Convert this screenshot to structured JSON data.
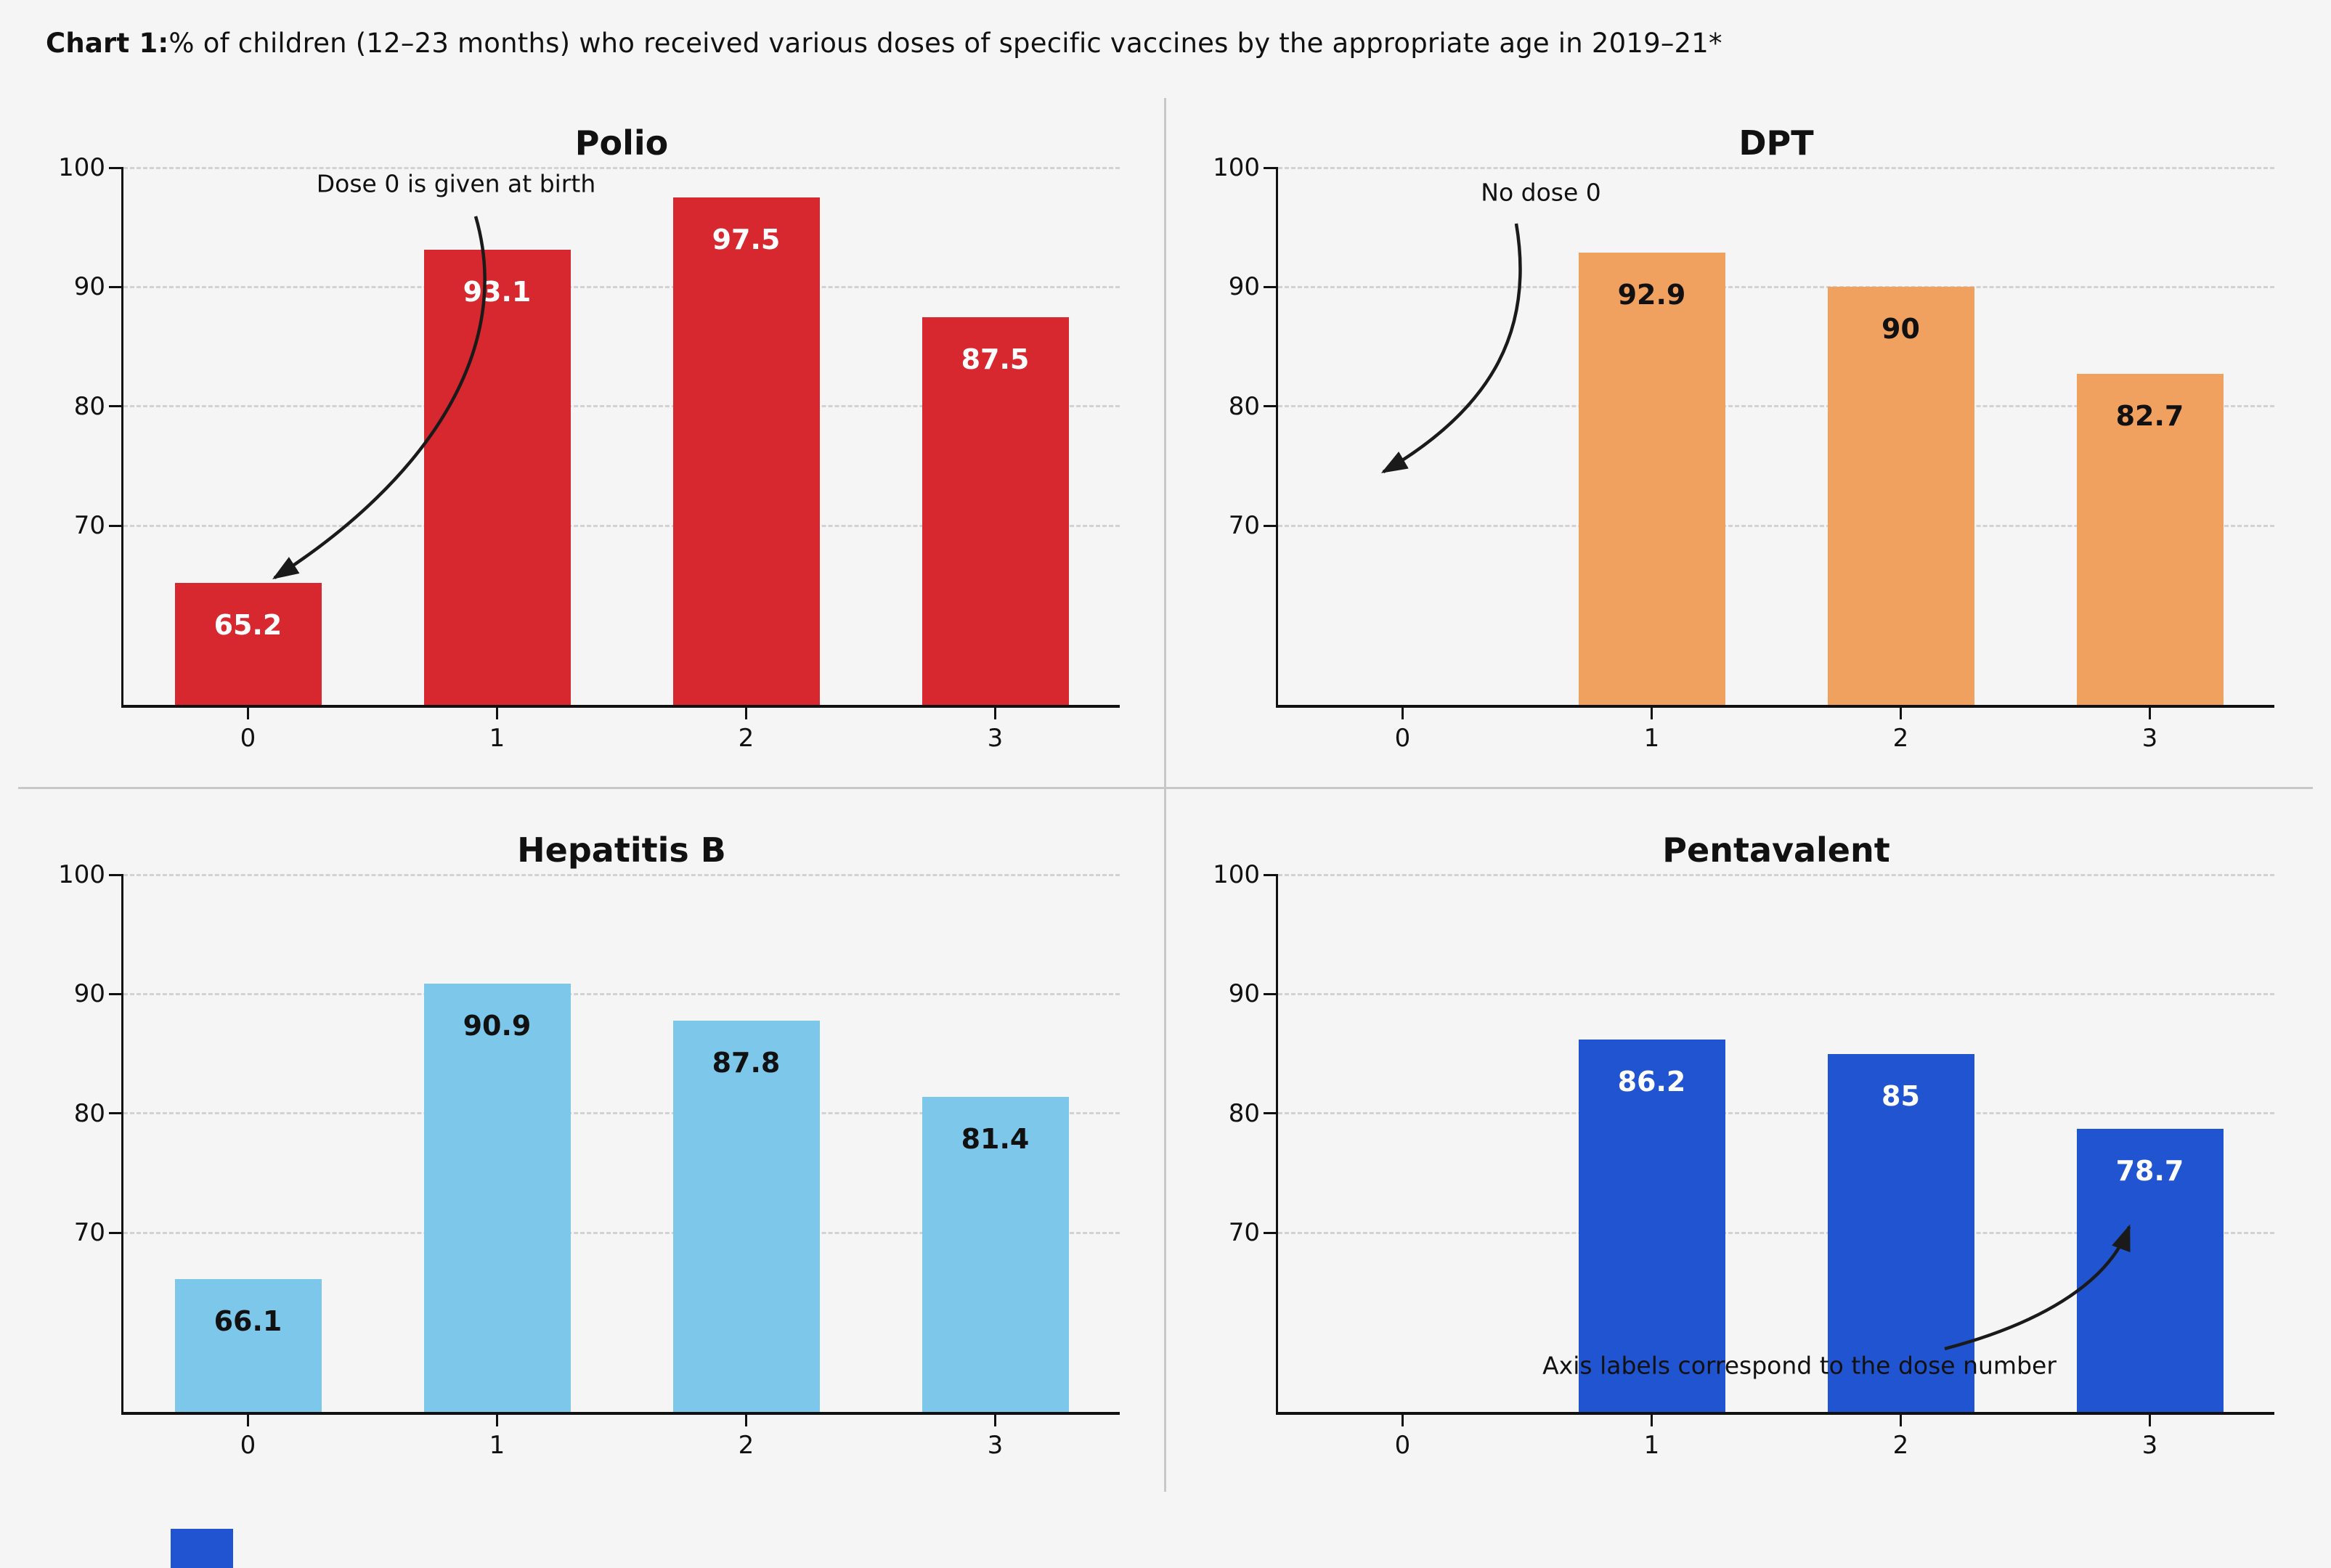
{
  "page": {
    "background": "#f5f5f6"
  },
  "title": {
    "prefix": "Chart 1:",
    "rest": "% of children (12–23 months) who received various doses of specific vaccines by the appropriate age in 2019–21*"
  },
  "colors": {
    "polio_red": "#d7282f",
    "dpt_orange": "#f0a15f",
    "hepb_skyblue": "#7cc7ea",
    "penta_royalblue": "#2154d0",
    "grid": "#d2d2d2",
    "axis": "#111111",
    "divider": "#c8c8c8"
  },
  "chart_data": [
    {
      "id": "polio",
      "type": "bar",
      "title": "Polio",
      "categories": [
        "0",
        "1",
        "2",
        "3"
      ],
      "values": [
        65.2,
        93.1,
        97.5,
        87.5
      ],
      "value_labels": [
        "65.2",
        "93.1",
        "97.5",
        "87.5"
      ],
      "bar_color": "#d7282f",
      "value_label_color": "#ffffff",
      "xlabel": "",
      "ylabel": "",
      "ylim": [
        55,
        100
      ],
      "yticks": [
        70,
        80,
        90,
        100
      ],
      "grid": "dashed-horizontal",
      "annotation": {
        "text": "Dose 0 is given at birth"
      }
    },
    {
      "id": "dpt",
      "type": "bar",
      "title": "DPT",
      "categories": [
        "0",
        "1",
        "2",
        "3"
      ],
      "values": [
        null,
        92.9,
        90,
        82.7
      ],
      "value_labels": [
        null,
        "92.9",
        "90",
        "82.7"
      ],
      "bar_color": "#f0a15f",
      "value_label_color": "#111111",
      "xlabel": "",
      "ylabel": "",
      "ylim": [
        55,
        100
      ],
      "yticks": [
        70,
        80,
        90,
        100
      ],
      "grid": "dashed-horizontal",
      "annotation": {
        "text": "No dose 0"
      }
    },
    {
      "id": "hepatitis-b",
      "type": "bar",
      "title": "Hepatitis B",
      "categories": [
        "0",
        "1",
        "2",
        "3"
      ],
      "values": [
        66.1,
        90.9,
        87.8,
        81.4
      ],
      "value_labels": [
        "66.1",
        "90.9",
        "87.8",
        "81.4"
      ],
      "bar_color": "#7cc7ea",
      "value_label_color": "#111111",
      "xlabel": "",
      "ylabel": "",
      "ylim": [
        55,
        100
      ],
      "yticks": [
        70,
        80,
        90,
        100
      ],
      "grid": "dashed-horizontal",
      "annotation": null
    },
    {
      "id": "pentavalent",
      "type": "bar",
      "title": "Pentavalent",
      "categories": [
        "0",
        "1",
        "2",
        "3"
      ],
      "values": [
        null,
        86.2,
        85,
        78.7
      ],
      "value_labels": [
        null,
        "86.2",
        "85",
        "78.7"
      ],
      "bar_color": "#2154d0",
      "value_label_color": "#ffffff",
      "xlabel": "",
      "ylabel": "",
      "ylim": [
        55,
        100
      ],
      "yticks": [
        70,
        80,
        90,
        100
      ],
      "grid": "dashed-horizontal",
      "annotation": {
        "text": "Axis labels correspond to the dose number"
      }
    }
  ]
}
